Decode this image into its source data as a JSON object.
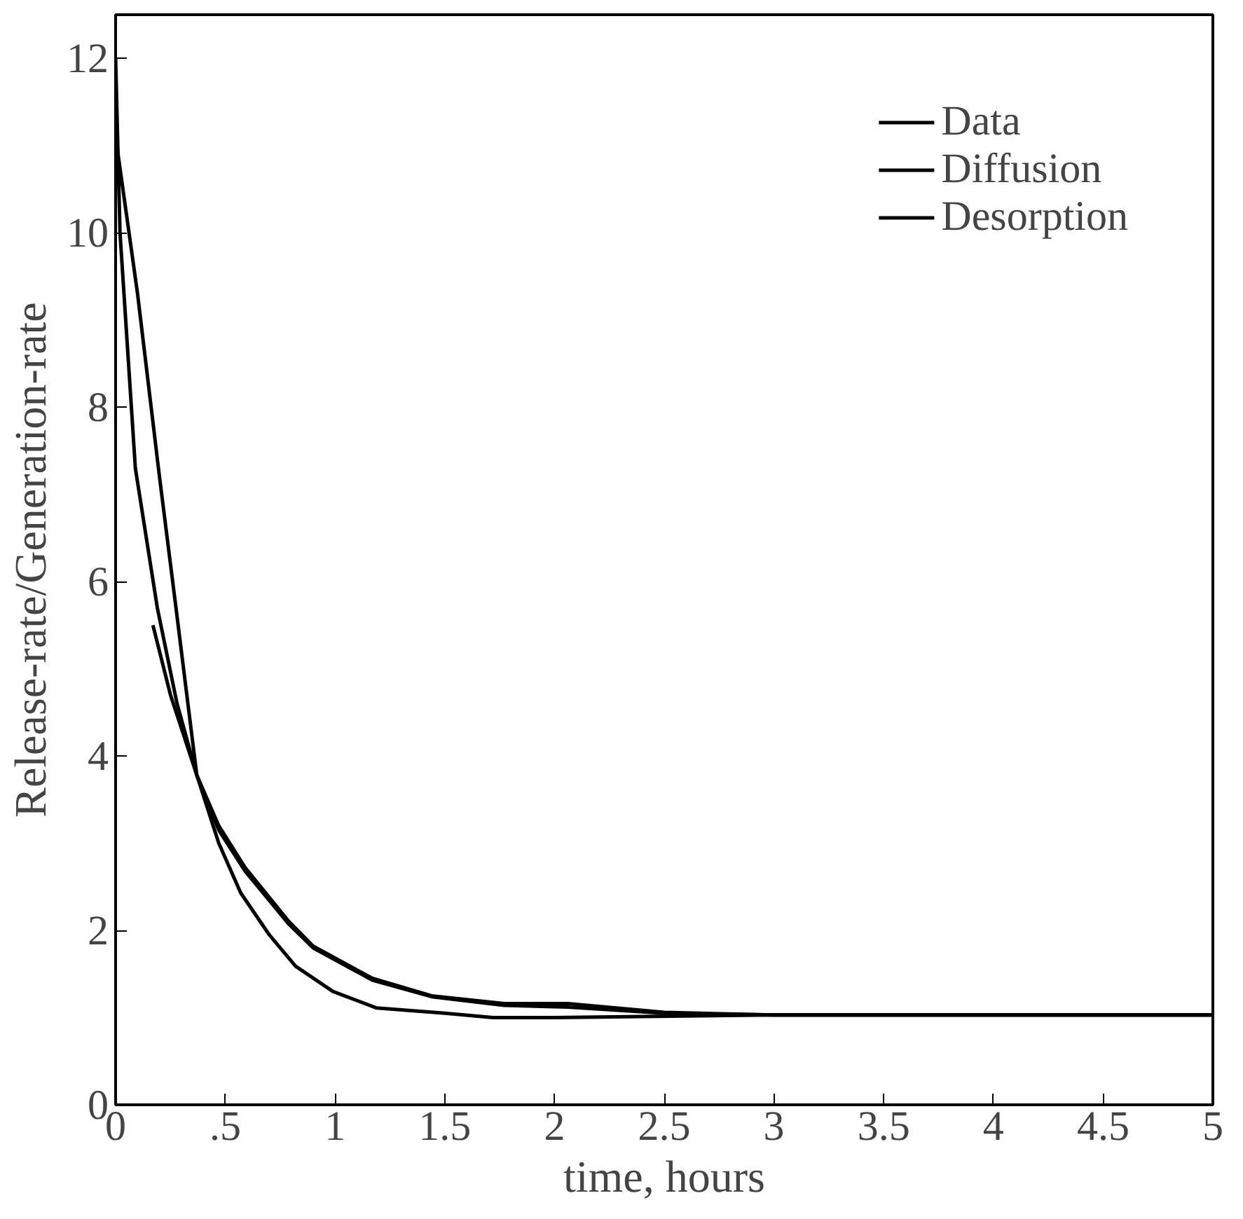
{
  "chart_data": {
    "type": "line",
    "xlabel": "time, hours",
    "ylabel": "Release-rate/Generation-rate",
    "xlim": [
      0,
      5
    ],
    "ylim": [
      0,
      12.5
    ],
    "xticks": [
      0,
      {
        "value": 0.5,
        "label": ".5"
      },
      1,
      1.5,
      2,
      2.5,
      3,
      3.5,
      4,
      4.5,
      5
    ],
    "yticks": [
      0,
      2,
      4,
      6,
      8,
      10,
      12
    ],
    "grid": false,
    "legend": "top right",
    "marker": "none",
    "line_style": "solid",
    "series": [
      {
        "name": "Data",
        "color": "#000000",
        "x": [
          0.17,
          0.25,
          0.37,
          0.47,
          0.59,
          0.79,
          0.9,
          1.17,
          1.44,
          1.77,
          2.06,
          2.5,
          3,
          5
        ],
        "values": [
          5.5,
          4.7,
          3.78,
          3.2,
          2.72,
          2.1,
          1.82,
          1.45,
          1.25,
          1.16,
          1.16,
          1.06,
          1.03,
          1.03
        ]
      },
      {
        "name": "Diffusion",
        "color": "#000000",
        "x": [
          0,
          0.02,
          0.09,
          0.19,
          0.28,
          0.37,
          0.47,
          0.59,
          0.79,
          0.9,
          1.17,
          1.44,
          1.77,
          2.06,
          2.5,
          3,
          5
        ],
        "values": [
          12.0,
          10,
          7.3,
          5.7,
          4.6,
          3.78,
          3.15,
          2.68,
          2.07,
          1.8,
          1.43,
          1.24,
          1.14,
          1.12,
          1.05,
          1.03,
          1.03
        ]
      },
      {
        "name": "Desorption",
        "color": "#000000",
        "x": [
          0,
          0.1,
          0.2,
          0.28,
          0.37,
          0.47,
          0.57,
          0.7,
          0.82,
          0.99,
          1.19,
          1.5,
          1.72,
          2.0,
          3,
          5
        ],
        "values": [
          11.1,
          9.3,
          7.2,
          5.6,
          3.78,
          3.0,
          2.43,
          1.95,
          1.59,
          1.3,
          1.11,
          1.05,
          1.0,
          1.0,
          1.03,
          1.03
        ]
      }
    ]
  }
}
